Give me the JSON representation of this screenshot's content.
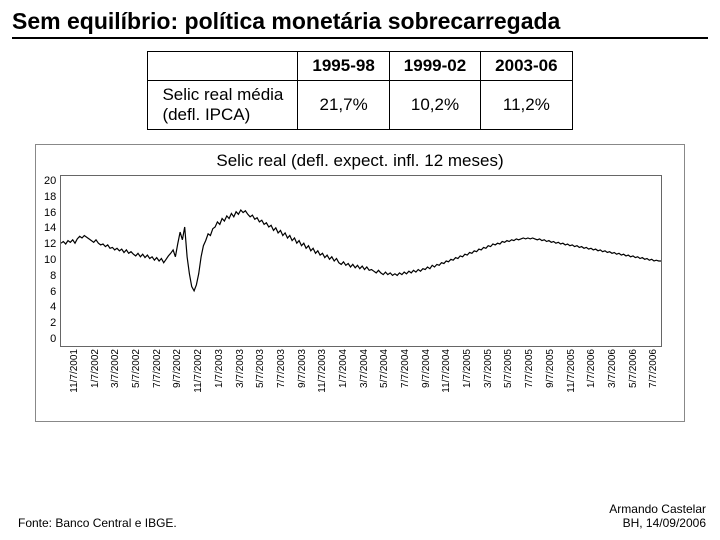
{
  "title": "Sem equilíbrio: política monetária sobrecarregada",
  "table": {
    "columns": [
      "1995-98",
      "1999-02",
      "2003-06"
    ],
    "row_label": "Selic real média\n(defl. IPCA)",
    "values": [
      "21,7%",
      "10,2%",
      "11,2%"
    ]
  },
  "chart": {
    "type": "line",
    "title": "Selic real (defl. expect. infl. 12 meses)",
    "ylim": [
      0,
      20
    ],
    "yticks": [
      20,
      18,
      16,
      14,
      12,
      10,
      8,
      6,
      4,
      2,
      0
    ],
    "x_labels": [
      "11/7/2001",
      "1/7/2002",
      "3/7/2002",
      "5/7/2002",
      "7/7/2002",
      "9/7/2002",
      "11/7/2002",
      "1/7/2003",
      "3/7/2003",
      "5/7/2003",
      "7/7/2003",
      "9/7/2003",
      "11/7/2003",
      "1/7/2004",
      "3/7/2004",
      "5/7/2004",
      "7/7/2004",
      "9/7/2004",
      "11/7/2004",
      "1/7/2005",
      "3/7/2005",
      "5/7/2005",
      "7/7/2005",
      "9/7/2005",
      "11/7/2005",
      "1/7/2006",
      "3/7/2006",
      "5/7/2006",
      "7/7/2006"
    ],
    "line_color": "#000000",
    "line_width": 1.2,
    "grid_color": "#e8e8e8",
    "background_color": "#ffffff",
    "series": [
      12.1,
      12.3,
      12.0,
      12.4,
      12.2,
      12.5,
      12.1,
      12.6,
      12.9,
      12.7,
      13.0,
      12.8,
      12.6,
      12.4,
      12.2,
      12.5,
      12.1,
      11.9,
      12.0,
      11.7,
      11.9,
      11.5,
      11.6,
      11.3,
      11.5,
      11.2,
      11.4,
      11.0,
      11.3,
      10.9,
      11.1,
      10.8,
      10.6,
      10.9,
      10.5,
      10.8,
      10.4,
      10.7,
      10.3,
      10.5,
      10.1,
      10.4,
      10.0,
      10.3,
      9.8,
      10.2,
      10.6,
      10.9,
      11.3,
      10.5,
      12.0,
      13.4,
      12.5,
      14.0,
      10.5,
      8.5,
      7.0,
      6.5,
      7.2,
      8.5,
      10.5,
      11.8,
      12.4,
      13.2,
      13.0,
      13.8,
      14.0,
      14.6,
      14.3,
      15.0,
      14.7,
      15.3,
      15.0,
      15.6,
      15.2,
      15.8,
      15.5,
      16.0,
      15.7,
      15.9,
      15.5,
      15.2,
      15.4,
      14.9,
      15.1,
      14.6,
      14.8,
      14.3,
      14.5,
      14.0,
      14.2,
      13.6,
      13.9,
      13.3,
      13.6,
      13.0,
      13.3,
      12.7,
      13.0,
      12.4,
      12.7,
      12.1,
      12.4,
      11.8,
      12.1,
      11.5,
      11.8,
      11.2,
      11.5,
      10.9,
      11.2,
      10.7,
      10.9,
      10.4,
      10.7,
      10.2,
      10.5,
      10.0,
      10.3,
      9.8,
      9.6,
      9.9,
      9.5,
      9.7,
      9.3,
      9.6,
      9.2,
      9.5,
      9.1,
      9.4,
      9.0,
      9.3,
      8.9,
      9.0,
      8.8,
      8.6,
      8.9,
      8.6,
      8.4,
      8.7,
      8.4,
      8.6,
      8.3,
      8.5,
      8.3,
      8.6,
      8.4,
      8.7,
      8.5,
      8.8,
      8.6,
      8.9,
      8.7,
      9.0,
      8.8,
      9.1,
      9.0,
      9.3,
      9.1,
      9.5,
      9.3,
      9.6,
      9.5,
      9.8,
      9.7,
      10.0,
      9.9,
      10.2,
      10.1,
      10.4,
      10.3,
      10.6,
      10.5,
      10.8,
      10.7,
      11.0,
      10.9,
      11.2,
      11.1,
      11.4,
      11.3,
      11.6,
      11.5,
      11.8,
      11.7,
      12.0,
      11.9,
      12.1,
      12.0,
      12.3,
      12.2,
      12.4,
      12.3,
      12.5,
      12.4,
      12.6,
      12.5,
      12.6,
      12.7,
      12.6,
      12.7,
      12.6,
      12.7,
      12.6,
      12.5,
      12.6,
      12.4,
      12.5,
      12.3,
      12.4,
      12.2,
      12.3,
      12.1,
      12.2,
      12.0,
      12.1,
      11.9,
      12.0,
      11.8,
      11.9,
      11.7,
      11.8,
      11.6,
      11.7,
      11.5,
      11.6,
      11.4,
      11.5,
      11.3,
      11.4,
      11.2,
      11.3,
      11.1,
      11.2,
      11.0,
      11.1,
      10.9,
      11.0,
      10.8,
      10.9,
      10.7,
      10.8,
      10.6,
      10.7,
      10.5,
      10.6,
      10.4,
      10.5,
      10.3,
      10.4,
      10.2,
      10.3,
      10.1,
      10.2,
      10.0,
      10.1,
      10.0,
      10.0
    ]
  },
  "footer": {
    "source": "Fonte: Banco Central e IBGE.",
    "author": "Armando Castelar",
    "place_date": "BH, 14/09/2006"
  }
}
